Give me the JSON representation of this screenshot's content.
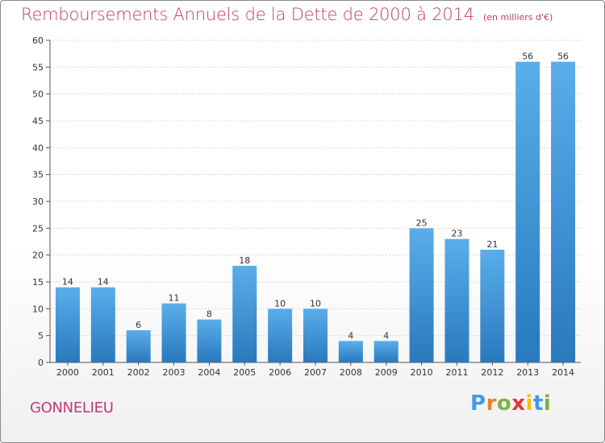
{
  "header": {
    "title": "Remboursements Annuels de la Dette de 2000 à 2014",
    "unit": "(en milliers d'€)"
  },
  "footer": {
    "commune": "GONNELIEU",
    "logo": "Proxiti"
  },
  "colors": {
    "title": "#c0397a",
    "bar_top": "#5aaeea",
    "bar_bottom": "#2979bd"
  },
  "chart_data": {
    "type": "bar",
    "title": "Remboursements Annuels de la Dette de 2000 à 2014",
    "xlabel": "",
    "ylabel": "",
    "categories": [
      "2000",
      "2001",
      "2002",
      "2003",
      "2004",
      "2005",
      "2006",
      "2007",
      "2008",
      "2009",
      "2010",
      "2011",
      "2012",
      "2013",
      "2014"
    ],
    "values": [
      14,
      14,
      6,
      11,
      8,
      18,
      10,
      10,
      4,
      4,
      25,
      23,
      21,
      56,
      56
    ],
    "ylim": [
      0,
      60
    ],
    "yticks": [
      0,
      5,
      10,
      15,
      20,
      25,
      30,
      35,
      40,
      45,
      50,
      55,
      60
    ],
    "grid": true
  }
}
